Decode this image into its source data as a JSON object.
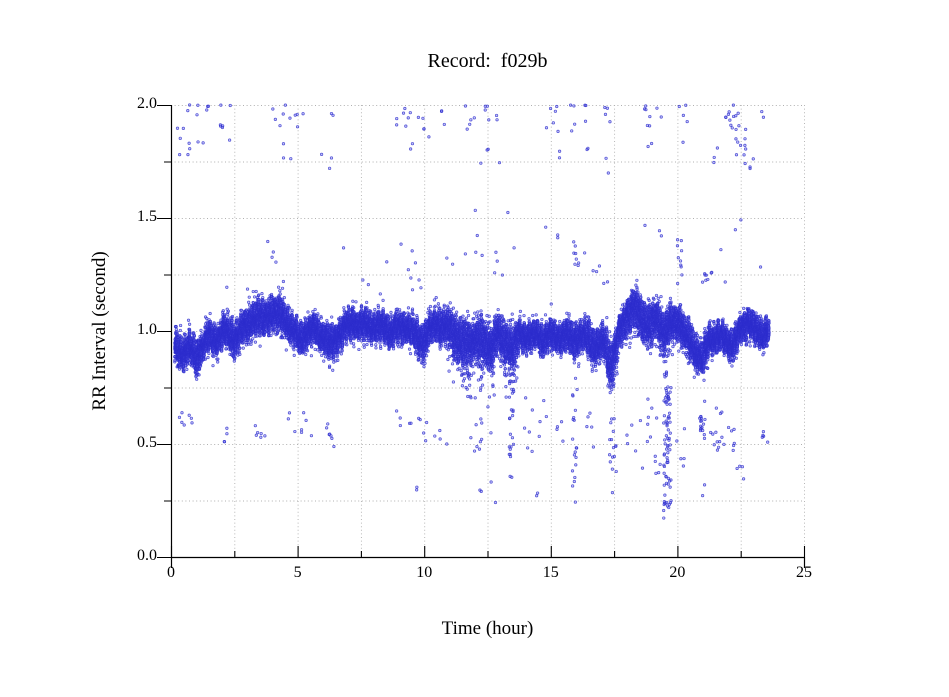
{
  "chart_data": {
    "type": "scatter",
    "title": "Record:  f029b",
    "xlabel": "Time (hour)",
    "ylabel": "RR Interval (second)",
    "xlim": [
      0,
      25
    ],
    "ylim": [
      0,
      2
    ],
    "x_major_ticks": [
      0,
      5,
      10,
      15,
      20,
      25
    ],
    "x_tick_labels": [
      "0",
      "5",
      "10",
      "15",
      "20",
      "25"
    ],
    "x_minor_ticks": [
      2.5,
      7.5,
      12.5,
      17.5,
      22.5
    ],
    "y_major_ticks": [
      0,
      0.5,
      1,
      1.5,
      2
    ],
    "y_tick_labels": [
      "0.0",
      "0.5",
      "1.0",
      "1.5",
      "2.0"
    ],
    "y_minor_ticks": [
      0.25,
      0.75,
      1.25,
      1.75
    ],
    "grid": "dotted gridlines at every major and minor tick",
    "legend": "none",
    "background": "#ffffff",
    "axis_color": "#000000",
    "grid_color": "#b0b0b0",
    "point_color": "#3333cc",
    "point_fill": "rgba(100,100,235,0.38)",
    "point_stroke": "rgba(45,45,205,0.8)",
    "data_model": {
      "description": "Dense RR-interval band around 1.0 s over ~23.6 h plus ectopic outliers near 0.2-0.7 s and 1.6-2.0 s",
      "band": {
        "t_start": 0.15,
        "t_end": 23.62,
        "points_per_hour": 1050,
        "profile": [
          [
            0.15,
            0.92,
            0.05
          ],
          [
            0.4,
            0.9,
            0.05
          ],
          [
            0.7,
            0.93,
            0.05
          ],
          [
            1.0,
            0.88,
            0.06
          ],
          [
            1.2,
            0.93,
            0.05
          ],
          [
            1.5,
            0.97,
            0.05
          ],
          [
            1.8,
            0.96,
            0.05
          ],
          [
            2.1,
            1.0,
            0.05
          ],
          [
            2.4,
            0.97,
            0.06
          ],
          [
            2.7,
            0.99,
            0.05
          ],
          [
            3.0,
            1.02,
            0.06
          ],
          [
            3.3,
            1.07,
            0.06
          ],
          [
            3.6,
            1.04,
            0.06
          ],
          [
            3.9,
            1.08,
            0.06
          ],
          [
            4.2,
            1.07,
            0.06
          ],
          [
            4.5,
            1.06,
            0.06
          ],
          [
            4.8,
            1.0,
            0.05
          ],
          [
            5.1,
            0.97,
            0.05
          ],
          [
            5.4,
            0.99,
            0.05
          ],
          [
            5.7,
            1.01,
            0.05
          ],
          [
            6.0,
            0.98,
            0.05
          ],
          [
            6.3,
            0.94,
            0.06
          ],
          [
            6.6,
            0.98,
            0.05
          ],
          [
            6.9,
            1.01,
            0.05
          ],
          [
            7.2,
            1.04,
            0.05
          ],
          [
            7.5,
            1.02,
            0.05
          ],
          [
            7.8,
            1.03,
            0.05
          ],
          [
            8.1,
            1.01,
            0.05
          ],
          [
            8.4,
            1.02,
            0.05
          ],
          [
            8.7,
            1.0,
            0.05
          ],
          [
            9.0,
            1.01,
            0.05
          ],
          [
            9.3,
            1.02,
            0.05
          ],
          [
            9.6,
            0.99,
            0.05
          ],
          [
            9.9,
            0.95,
            0.06
          ],
          [
            10.2,
            1.0,
            0.05
          ],
          [
            10.5,
            1.03,
            0.06
          ],
          [
            10.8,
            1.02,
            0.06
          ],
          [
            11.1,
            1.0,
            0.07
          ],
          [
            11.4,
            0.96,
            0.08
          ],
          [
            11.7,
            0.94,
            0.08
          ],
          [
            12.0,
            0.97,
            0.07
          ],
          [
            12.3,
            0.95,
            0.08
          ],
          [
            12.6,
            0.93,
            0.07
          ],
          [
            12.9,
            0.98,
            0.06
          ],
          [
            13.2,
            0.95,
            0.07
          ],
          [
            13.5,
            0.93,
            0.07
          ],
          [
            13.8,
            0.99,
            0.05
          ],
          [
            14.1,
            0.97,
            0.05
          ],
          [
            14.4,
            0.98,
            0.05
          ],
          [
            14.7,
            0.96,
            0.05
          ],
          [
            15.0,
            0.98,
            0.05
          ],
          [
            15.3,
            0.97,
            0.05
          ],
          [
            15.6,
            0.98,
            0.05
          ],
          [
            15.9,
            0.96,
            0.06
          ],
          [
            16.2,
            0.98,
            0.05
          ],
          [
            16.5,
            0.96,
            0.06
          ],
          [
            16.8,
            0.93,
            0.06
          ],
          [
            17.1,
            0.95,
            0.06
          ],
          [
            17.35,
            0.86,
            0.08
          ],
          [
            17.5,
            0.9,
            0.07
          ],
          [
            17.7,
            0.98,
            0.06
          ],
          [
            18.0,
            1.06,
            0.06
          ],
          [
            18.3,
            1.1,
            0.07
          ],
          [
            18.6,
            1.05,
            0.07
          ],
          [
            18.9,
            1.02,
            0.07
          ],
          [
            19.2,
            1.05,
            0.07
          ],
          [
            19.5,
            1.0,
            0.07
          ],
          [
            19.8,
            1.03,
            0.06
          ],
          [
            20.1,
            1.04,
            0.06
          ],
          [
            20.4,
            0.97,
            0.06
          ],
          [
            20.7,
            0.91,
            0.06
          ],
          [
            21.0,
            0.88,
            0.06
          ],
          [
            21.3,
            0.96,
            0.05
          ],
          [
            21.6,
            0.98,
            0.05
          ],
          [
            21.9,
            0.96,
            0.05
          ],
          [
            22.2,
            0.94,
            0.05
          ],
          [
            22.5,
            1.0,
            0.05
          ],
          [
            22.8,
            1.05,
            0.05
          ],
          [
            23.1,
            1.0,
            0.05
          ],
          [
            23.4,
            0.98,
            0.05
          ],
          [
            23.62,
            1.02,
            0.04
          ]
        ],
        "down_tails": [
          [
            0.9,
            1.15,
            0.1,
            0.05
          ],
          [
            2.3,
            2.6,
            0.08,
            0.04
          ],
          [
            3.0,
            4.8,
            0.07,
            0.04
          ],
          [
            5.2,
            6.6,
            0.1,
            0.04
          ],
          [
            9.7,
            10.1,
            0.16,
            0.06
          ],
          [
            10.9,
            12.8,
            0.25,
            0.1
          ],
          [
            13.0,
            13.7,
            0.22,
            0.09
          ],
          [
            14.0,
            14.4,
            0.08,
            0.04
          ],
          [
            15.7,
            16.1,
            0.13,
            0.05
          ],
          [
            16.6,
            17.1,
            0.1,
            0.05
          ],
          [
            17.2,
            17.6,
            0.12,
            0.15
          ],
          [
            19.3,
            19.85,
            0.18,
            0.07
          ],
          [
            20.2,
            20.5,
            0.15,
            0.06
          ],
          [
            20.8,
            21.2,
            0.1,
            0.07
          ],
          [
            22.0,
            22.35,
            0.08,
            0.04
          ]
        ],
        "up_tails": [
          [
            3.1,
            4.6,
            0.08,
            0.02
          ],
          [
            10.4,
            13.5,
            0.15,
            0.03
          ],
          [
            14.6,
            15.4,
            0.1,
            0.02
          ],
          [
            17.9,
            19.5,
            0.1,
            0.03
          ],
          [
            22.4,
            23.1,
            0.06,
            0.02
          ]
        ]
      },
      "outlier_clusters": [
        [
          0.25,
          0.75,
          1.78,
          1.9,
          7
        ],
        [
          0.6,
          1.6,
          1.93,
          2.02,
          7
        ],
        [
          1.0,
          1.35,
          1.83,
          1.87,
          2
        ],
        [
          1.95,
          2.5,
          1.9,
          2.01,
          6
        ],
        [
          2.15,
          2.35,
          1.83,
          1.85,
          1
        ],
        [
          4.0,
          5.3,
          1.9,
          2.02,
          10
        ],
        [
          4.2,
          5.0,
          1.76,
          1.85,
          3
        ],
        [
          5.9,
          6.5,
          1.71,
          1.79,
          3
        ],
        [
          6.3,
          6.5,
          1.92,
          1.97,
          2
        ],
        [
          8.8,
          10.4,
          1.88,
          2.02,
          11
        ],
        [
          9.0,
          10.3,
          1.79,
          1.86,
          3
        ],
        [
          10.5,
          11.1,
          1.9,
          1.98,
          3
        ],
        [
          11.5,
          13.4,
          1.88,
          2.02,
          11
        ],
        [
          12.0,
          13.4,
          1.72,
          1.84,
          4
        ],
        [
          14.4,
          16.4,
          1.88,
          2.02,
          13
        ],
        [
          14.9,
          15.7,
          1.76,
          1.81,
          2
        ],
        [
          16.4,
          16.6,
          1.79,
          1.84,
          2
        ],
        [
          17.0,
          17.4,
          1.9,
          2.0,
          4
        ],
        [
          17.15,
          17.35,
          1.66,
          1.8,
          2
        ],
        [
          18.6,
          19.4,
          1.9,
          2.02,
          8
        ],
        [
          18.8,
          19.3,
          1.78,
          1.84,
          2
        ],
        [
          20.0,
          20.4,
          1.9,
          2.0,
          4
        ],
        [
          20.15,
          20.3,
          1.83,
          1.85,
          1
        ],
        [
          21.2,
          21.6,
          1.74,
          1.84,
          3
        ],
        [
          21.8,
          22.4,
          1.92,
          2.02,
          6
        ],
        [
          22.0,
          22.4,
          1.86,
          2.0,
          6
        ],
        [
          22.3,
          22.7,
          1.76,
          1.92,
          8
        ],
        [
          22.6,
          23.0,
          1.7,
          1.82,
          6
        ],
        [
          23.3,
          23.55,
          1.94,
          1.98,
          2
        ],
        [
          15.9,
          16.1,
          1.26,
          1.42,
          8
        ],
        [
          20.0,
          20.2,
          1.2,
          1.43,
          10
        ],
        [
          20.9,
          21.4,
          1.21,
          1.27,
          8
        ],
        [
          0.2,
          0.9,
          0.57,
          0.65,
          7
        ],
        [
          2.1,
          2.3,
          0.5,
          0.58,
          4
        ],
        [
          3.2,
          4.0,
          0.5,
          0.62,
          6
        ],
        [
          4.6,
          5.6,
          0.5,
          0.64,
          8
        ],
        [
          5.6,
          6.6,
          0.48,
          0.6,
          7
        ],
        [
          8.9,
          10.1,
          0.48,
          0.66,
          10
        ],
        [
          9.65,
          9.8,
          0.28,
          0.36,
          2
        ],
        [
          10.4,
          11.1,
          0.5,
          0.56,
          4
        ],
        [
          11.7,
          12.65,
          0.45,
          0.62,
          10
        ],
        [
          12.2,
          13.0,
          0.16,
          0.34,
          4
        ],
        [
          13.9,
          14.9,
          0.42,
          0.72,
          10
        ],
        [
          14.2,
          14.5,
          0.22,
          0.3,
          2
        ],
        [
          15.2,
          15.6,
          0.5,
          0.65,
          4
        ],
        [
          16.3,
          16.7,
          0.45,
          0.7,
          5
        ],
        [
          18.0,
          18.4,
          0.45,
          0.62,
          4
        ],
        [
          18.5,
          19.35,
          0.3,
          0.7,
          14
        ],
        [
          19.9,
          20.3,
          0.35,
          0.6,
          5
        ],
        [
          20.85,
          21.1,
          0.52,
          0.7,
          9
        ],
        [
          20.95,
          21.1,
          0.26,
          0.34,
          2
        ],
        [
          21.3,
          22.3,
          0.47,
          0.6,
          16
        ],
        [
          21.5,
          21.8,
          0.62,
          0.68,
          3
        ],
        [
          22.3,
          22.7,
          0.3,
          0.46,
          4
        ],
        [
          23.3,
          23.62,
          0.5,
          0.57,
          5
        ],
        [
          13.35,
          13.55,
          0.35,
          0.8,
          22
        ],
        [
          15.85,
          16.05,
          0.2,
          0.8,
          20
        ],
        [
          17.3,
          17.6,
          0.28,
          0.8,
          18
        ],
        [
          19.45,
          19.75,
          0.17,
          0.82,
          80
        ],
        [
          20.9,
          21.05,
          0.55,
          0.68,
          8
        ]
      ],
      "outlier_points": [
        [
          2.2,
          1.19
        ],
        [
          3.0,
          1.18
        ],
        [
          3.25,
          1.17
        ],
        [
          3.8,
          1.4
        ],
        [
          4.0,
          1.33
        ],
        [
          4.05,
          1.355
        ],
        [
          4.15,
          1.31
        ],
        [
          4.45,
          1.22
        ],
        [
          4.4,
          1.19
        ],
        [
          6.8,
          1.37
        ],
        [
          7.6,
          1.23
        ],
        [
          7.8,
          1.2
        ],
        [
          8.25,
          1.16
        ],
        [
          8.5,
          1.3
        ],
        [
          9.1,
          1.38
        ],
        [
          9.35,
          1.27
        ],
        [
          9.5,
          1.35
        ],
        [
          9.5,
          1.235
        ],
        [
          9.65,
          1.3
        ],
        [
          9.55,
          1.18
        ],
        [
          9.8,
          1.22
        ],
        [
          9.9,
          1.19
        ],
        [
          10.9,
          1.32
        ],
        [
          11.1,
          1.29
        ],
        [
          11.65,
          1.34
        ],
        [
          12.0,
          1.53
        ],
        [
          12.1,
          1.42
        ],
        [
          12.05,
          1.35
        ],
        [
          12.3,
          1.33
        ],
        [
          12.85,
          1.345
        ],
        [
          12.9,
          1.31
        ],
        [
          12.8,
          1.26
        ],
        [
          13.1,
          1.25
        ],
        [
          13.3,
          1.53
        ],
        [
          13.55,
          1.37
        ],
        [
          14.8,
          1.46
        ],
        [
          15.3,
          1.43
        ],
        [
          15.25,
          1.415
        ],
        [
          16.35,
          1.34
        ],
        [
          16.7,
          1.27
        ],
        [
          16.8,
          1.26
        ],
        [
          16.9,
          1.29
        ],
        [
          17.1,
          1.21
        ],
        [
          17.25,
          1.22
        ],
        [
          18.7,
          1.465
        ],
        [
          19.3,
          1.44
        ],
        [
          19.35,
          1.42
        ],
        [
          21.7,
          1.36
        ],
        [
          21.9,
          1.22
        ],
        [
          22.3,
          1.45
        ],
        [
          22.5,
          1.49
        ],
        [
          23.3,
          1.28
        ]
      ]
    }
  }
}
